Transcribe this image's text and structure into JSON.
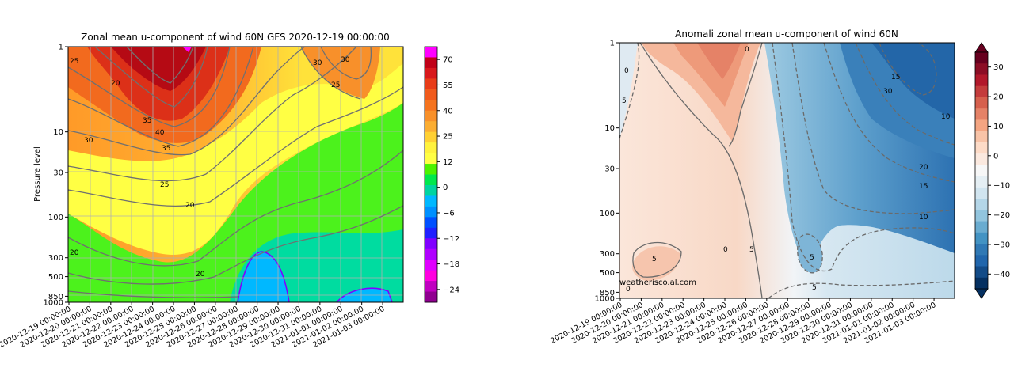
{
  "chart_data": [
    {
      "type": "heatmap",
      "title": "Zonal mean u-component of wind 60N GFS 2020-12-19 00:00:00",
      "ylabel": "Pressure level",
      "xlabel": "",
      "y_scale": "log",
      "y_inverted": true,
      "ylim": [
        1000,
        1
      ],
      "y_ticks": [
        "1",
        "10",
        "30",
        "100",
        "300",
        "500",
        "850",
        "1000"
      ],
      "x_ticks": [
        "2020-12-19 00:00:00",
        "2020-12-20 00:00:00",
        "2020-12-21 00:00:00",
        "2020-12-22 00:00:00",
        "2020-12-23 00:00:00",
        "2020-12-24 00:00:00",
        "2020-12-25 00:00:00",
        "2020-12-26 00:00:00",
        "2020-12-27 00:00:00",
        "2020-12-28 00:00:00",
        "2020-12-29 00:00:00",
        "2020-12-30 00:00:00",
        "2020-12-31 00:00:00",
        "2021-01-01 00:00:00",
        "2021-01-02 00:00:00",
        "2021-01-03 00:00:00"
      ],
      "grid": true,
      "colorbar": {
        "ticks": [
          "70",
          "55",
          "40",
          "25",
          "12",
          "0",
          "−6",
          "−12",
          "−18",
          "−24"
        ],
        "colors": [
          "#ff00ff",
          "#c00018",
          "#d8181c",
          "#e83c18",
          "#f05a1c",
          "#f5731e",
          "#f8902a",
          "#fbad32",
          "#ffd033",
          "#fff23d",
          "#ffff44",
          "#4cf200",
          "#00e84c",
          "#00d4a0",
          "#00b8ff",
          "#0090ff",
          "#0050ff",
          "#2020ff",
          "#8000ff",
          "#b000ff",
          "#e000ff",
          "#ff00e0",
          "#c000c0",
          "#900090"
        ]
      },
      "contour_labels": [
        "25",
        "20",
        "30",
        "25",
        "30",
        "35",
        "40",
        "30",
        "35",
        "25",
        "20",
        "20",
        "20"
      ]
    },
    {
      "type": "heatmap",
      "title": "Anomali zonal mean u-component of wind 60N",
      "ylabel": "",
      "xlabel": "",
      "y_scale": "log",
      "y_inverted": true,
      "ylim": [
        1000,
        1
      ],
      "y_ticks": [
        "1",
        "10",
        "30",
        "100",
        "300",
        "500",
        "850",
        "1000"
      ],
      "x_ticks": [
        "2020-12-19 00:00:00",
        "2020-12-20 00:00:00",
        "2020-12-21 00:00:00",
        "2020-12-22 00:00:00",
        "2020-12-23 00:00:00",
        "2020-12-24 00:00:00",
        "2020-12-25 00:00:00",
        "2020-12-26 00:00:00",
        "2020-12-27 00:00:00",
        "2020-12-28 00:00:00",
        "2020-12-29 00:00:00",
        "2020-12-30 00:00:00",
        "2020-12-31 00:00:00",
        "2021-01-01 00:00:00",
        "2021-01-02 00:00:00",
        "2021-01-03 00:00:00"
      ],
      "grid": false,
      "colorbar": {
        "ticks": [
          "30",
          "20",
          "10",
          "0",
          "−10",
          "−20",
          "−30",
          "−40"
        ],
        "colors": [
          "#67001f",
          "#8c0d25",
          "#b2182b",
          "#c43c3c",
          "#d6604d",
          "#e58267",
          "#f4a582",
          "#f8c3a7",
          "#fddbc7",
          "#fbe9df",
          "#f7f7f7",
          "#e5eff4",
          "#d1e5f0",
          "#b4d6e8",
          "#92c5de",
          "#6aacd0",
          "#4393c3",
          "#3079b5",
          "#2166ac",
          "#134b87",
          "#053061"
        ]
      },
      "contour_labels": [
        "0",
        "5",
        "0",
        "5",
        "5",
        "0",
        "5",
        "15",
        "30",
        "10",
        "20",
        "15",
        "10",
        "5",
        "0"
      ],
      "watermark": "weatherisco.al.com"
    }
  ]
}
